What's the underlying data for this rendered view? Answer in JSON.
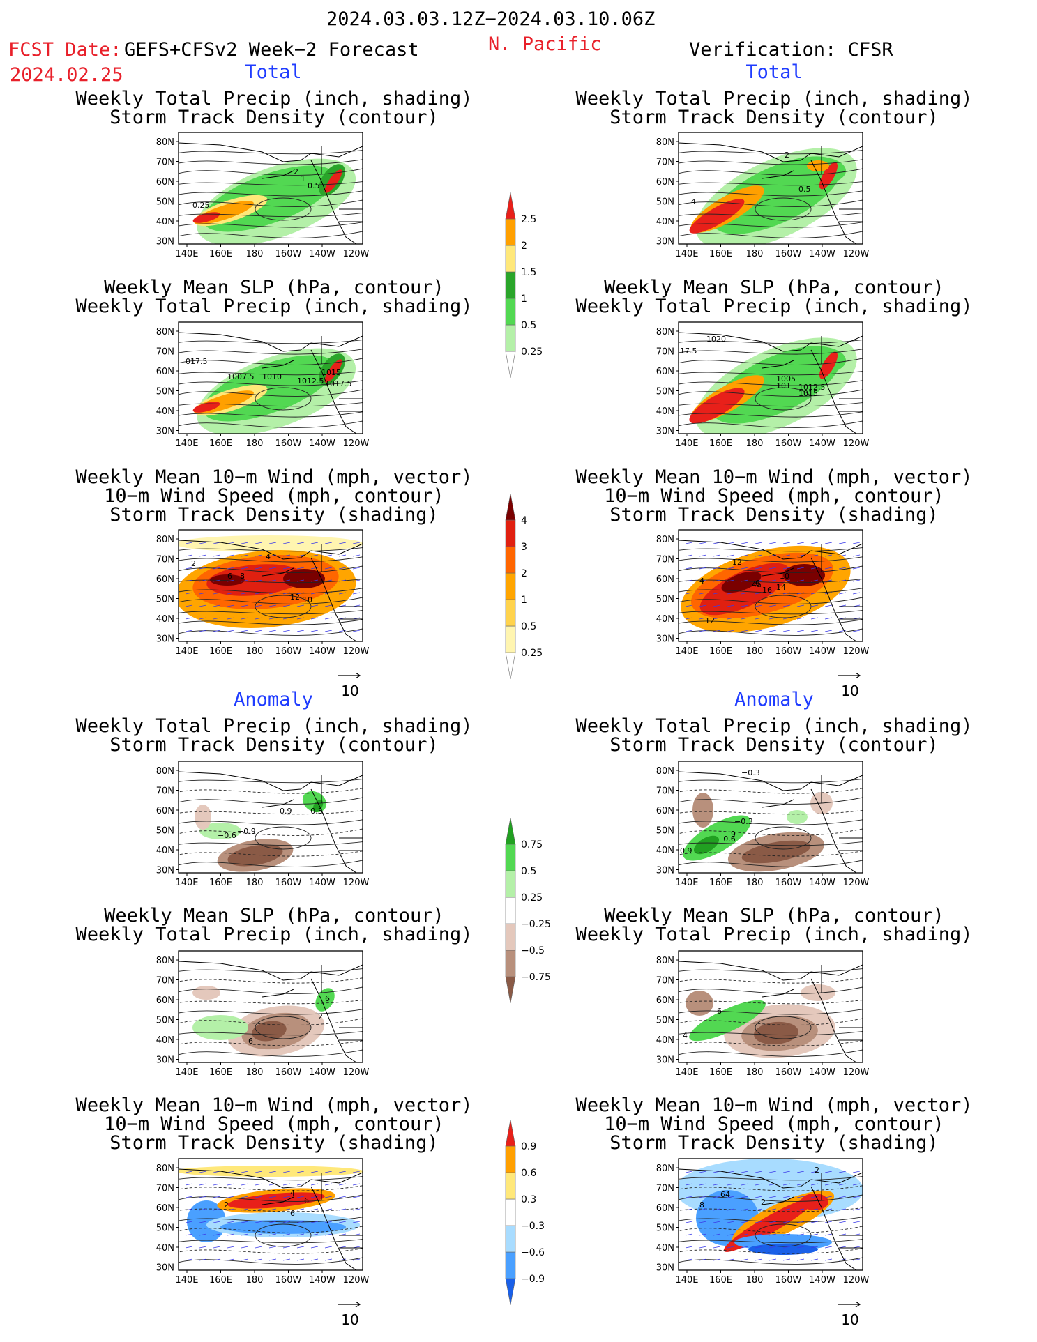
{
  "header": {
    "date_range": "2024.03.03.12Z−2024.03.10.06Z",
    "fcst_label": "FCST Date:",
    "fcst_model": "GEFS+CFSv2 Week−2 Forecast",
    "fcst_date": "2024.02.25",
    "region": "N. Pacific",
    "verification": "Verification: CFSR"
  },
  "sections": {
    "total_left": "Total",
    "total_right": "Total",
    "anomaly_left": "Anomaly",
    "anomaly_right": "Anomaly"
  },
  "titles": {
    "precip_storm_1": "Weekly Total Precip (inch, shading)",
    "precip_storm_2": "Storm Track Density (contour)",
    "slp_1": "Weekly Mean SLP (hPa, contour)",
    "slp_2": "Weekly Total Precip (inch, shading)",
    "wind_1": "Weekly Mean 10−m Wind (mph, vector)",
    "wind_2": "10−m Wind Speed (mph, contour)",
    "wind_3": "Storm Track Density (shading)"
  },
  "axes": {
    "lat": [
      "80N",
      "70N",
      "60N",
      "50N",
      "40N",
      "30N"
    ],
    "lon": [
      "140E",
      "160E",
      "180",
      "160W",
      "140W",
      "120W"
    ]
  },
  "vector_ref": "10",
  "colorbars": {
    "precip_total": {
      "colors": [
        "#ffffff",
        "#b4f0a8",
        "#52d852",
        "#2aa52a",
        "#ffe87a",
        "#ffa000",
        "#e8201a"
      ],
      "labels": [
        "0.25",
        "0.5",
        "1",
        "1.5",
        "2",
        "2.5"
      ]
    },
    "storm_total": {
      "colors": [
        "#ffffff",
        "#fff5b0",
        "#ffd34d",
        "#ffa500",
        "#ff6600",
        "#e02010",
        "#7a0000"
      ],
      "labels": [
        "0.25",
        "0.5",
        "1",
        "2",
        "3",
        "4"
      ]
    },
    "precip_anom": {
      "colors": [
        "#8a5a46",
        "#b8907c",
        "#e4c8bc",
        "#ffffff",
        "#b4f0a8",
        "#52d852",
        "#21a021"
      ],
      "labels": [
        "−0.75",
        "−0.5",
        "−0.25",
        "0.25",
        "0.5",
        "0.75"
      ]
    },
    "storm_anom": {
      "colors": [
        "#1a60e8",
        "#4aa0ff",
        "#a8dcff",
        "#ffffff",
        "#ffe87a",
        "#ffa000",
        "#e8201a"
      ],
      "labels": [
        "−0.9",
        "−0.6",
        "−0.3",
        "0.3",
        "0.6",
        "0.9"
      ]
    }
  },
  "panel_labels": {
    "L1": [
      "2",
      "1",
      "0.5",
      "0.25"
    ],
    "R1": [
      "2",
      "4",
      "0.5"
    ],
    "L2": [
      "017.5",
      "1007.5",
      "1010",
      "1012.5",
      "1015",
      "1017.5"
    ],
    "R2": [
      "1020",
      "17.5",
      "1005",
      "101",
      "1012.5",
      "1015"
    ],
    "L3": [
      "4",
      "6",
      "8",
      "12",
      "10",
      "2"
    ],
    "R3": [
      "12",
      "4",
      "10",
      "6",
      "16",
      "14",
      "4a",
      "12"
    ],
    "L4": [
      "0.9",
      "−0.3",
      "−0.6",
      "−0.9"
    ],
    "R4": [
      "−0.3",
      "−0.6",
      "−0.3",
      "0.9",
      "9"
    ],
    "L5": [
      "6",
      "2",
      "6"
    ],
    "R5": [
      "6",
      "4"
    ],
    "L6": [
      "2",
      "6",
      "4",
      "6"
    ],
    "R6": [
      "2",
      "8",
      "64",
      "2"
    ]
  }
}
